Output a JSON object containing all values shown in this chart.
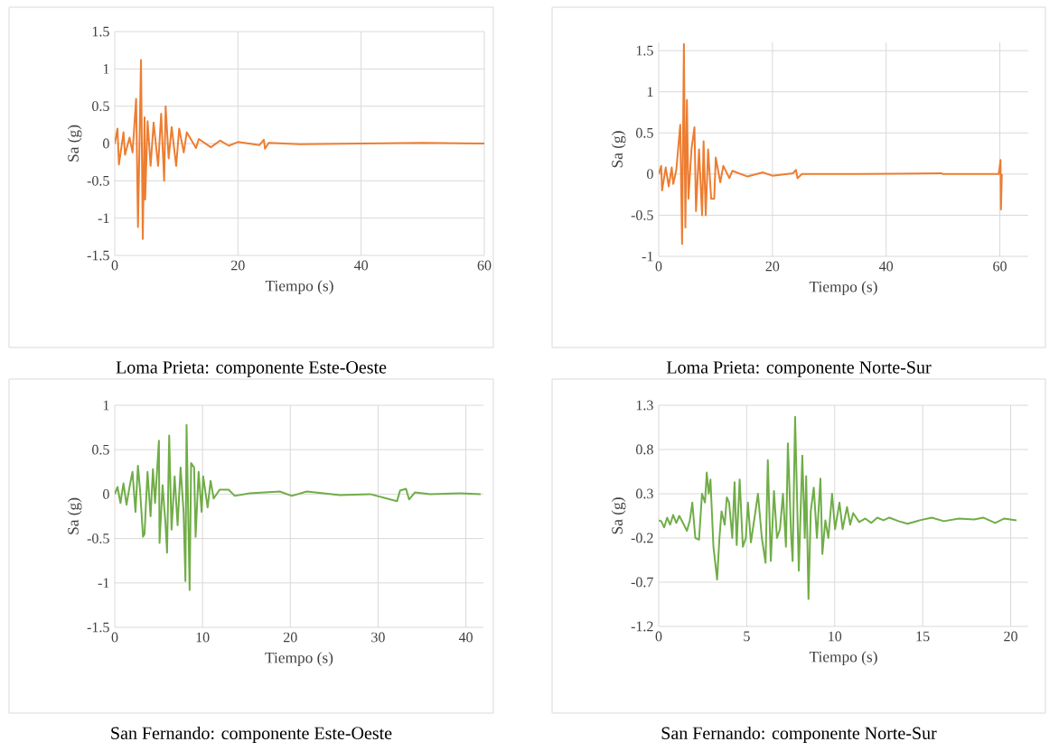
{
  "chart_data": [
    {
      "type": "line",
      "title": "Loma Prieta: componente Este-Oeste",
      "xlabel": "Tiempo (s)",
      "ylabel": "Sa (g)",
      "grid": true,
      "xlim": [
        0,
        60
      ],
      "ylim": [
        -1.5,
        1.5
      ],
      "xticks": [
        0,
        20,
        40,
        60
      ],
      "yticks": [
        -1.5,
        -1,
        -0.5,
        0,
        0.5,
        1,
        1.5
      ],
      "series": [
        {
          "color": "#ed7d31",
          "x": [
            0,
            0.44,
            0.68,
            1.42,
            1.66,
            2.4,
            2.89,
            3.47,
            3.77,
            4.26,
            4.55,
            4.84,
            4.94,
            5.33,
            5.82,
            6.31,
            7.04,
            7.53,
            8.02,
            8.26,
            8.75,
            9.24,
            9.97,
            10.46,
            11.2,
            11.69,
            13.2,
            13.64,
            15.6,
            17.1,
            18.5,
            20,
            23.5,
            24.2,
            24.4,
            25,
            30,
            40,
            50,
            60
          ],
          "values": [
            0,
            0.2,
            -0.28,
            0.15,
            -0.15,
            0.08,
            -0.12,
            0.6,
            -1.12,
            1.12,
            -1.28,
            0.35,
            -0.75,
            0.3,
            -0.3,
            0.28,
            -0.3,
            0.4,
            -0.5,
            0.5,
            -0.2,
            0.22,
            -0.3,
            0.2,
            -0.12,
            0.15,
            -0.06,
            0.06,
            -0.05,
            0.04,
            -0.03,
            0.02,
            -0.02,
            0.05,
            -0.07,
            0.01,
            -0.01,
            0,
            0.01,
            0
          ]
        }
      ]
    },
    {
      "type": "line",
      "title": "Loma Prieta: componente Norte-Sur",
      "xlabel": "Tiempo (s)",
      "ylabel": "Sa (g)",
      "grid": true,
      "xlim": [
        0,
        65
      ],
      "ylim": [
        -1,
        1.6
      ],
      "xticks": [
        0,
        20,
        40,
        60
      ],
      "yticks": [
        -1,
        -0.5,
        0,
        0.5,
        1,
        1.5
      ],
      "series": [
        {
          "color": "#ed7d31",
          "x": [
            0,
            0.43,
            0.59,
            1.23,
            1.76,
            2.29,
            2.56,
            3.09,
            3.79,
            4.11,
            4.43,
            4.69,
            4.96,
            5.23,
            5.76,
            6.29,
            6.56,
            7.09,
            7.63,
            7.89,
            8.27,
            8.69,
            9.23,
            9.76,
            10.03,
            10.83,
            11.36,
            12.43,
            12.96,
            15.63,
            18.29,
            20,
            23.6,
            24.15,
            24.41,
            25.2,
            35,
            49.7,
            50,
            59.8,
            60.12,
            60.2,
            60.35
          ],
          "values": [
            0,
            0.1,
            -0.2,
            0.08,
            -0.15,
            0.08,
            -0.12,
            0.05,
            0.6,
            -0.85,
            1.58,
            -0.65,
            0.9,
            -0.3,
            0.3,
            0.57,
            -0.45,
            0.3,
            -0.5,
            0.4,
            -0.5,
            0.3,
            -0.3,
            -0.3,
            0.2,
            -0.1,
            0.1,
            -0.05,
            0.04,
            -0.03,
            0.02,
            -0.02,
            0.01,
            0.05,
            -0.05,
            0,
            0,
            0.01,
            0,
            0,
            0.17,
            -0.43,
            0
          ]
        }
      ]
    },
    {
      "type": "line",
      "title": "San Fernando: componente Este-Oeste",
      "xlabel": "Tiempo (s)",
      "ylabel": "Sa (g)",
      "grid": true,
      "xlim": [
        0,
        42
      ],
      "ylim": [
        -1.5,
        1
      ],
      "xticks": [
        0,
        10,
        20,
        30,
        40
      ],
      "yticks": [
        -1.5,
        -1,
        -0.5,
        0,
        0.5,
        1
      ],
      "series": [
        {
          "color": "#70ad47",
          "x": [
            0,
            0.31,
            0.65,
            0.99,
            1.34,
            1.68,
            2.02,
            2.36,
            2.64,
            2.88,
            3.22,
            3.39,
            3.73,
            4.08,
            4.35,
            4.59,
            5.03,
            5.1,
            5.45,
            5.79,
            5.96,
            6.2,
            6.47,
            6.82,
            7.16,
            7.5,
            7.84,
            8.05,
            8.18,
            8.53,
            8.7,
            9.04,
            9.21,
            9.55,
            9.9,
            10.07,
            10.58,
            10.92,
            11.27,
            11.95,
            12.98,
            13.66,
            15.38,
            18.8,
            20.17,
            21.88,
            25.65,
            29.08,
            32.16,
            32.5,
            33.18,
            33.53,
            34.21,
            35.92,
            39.35,
            41.68
          ],
          "values": [
            0,
            0.08,
            -0.1,
            0.12,
            -0.12,
            0.08,
            0.25,
            -0.2,
            0.32,
            0.05,
            -0.48,
            -0.45,
            0.25,
            -0.25,
            0.28,
            -0.1,
            0.6,
            -0.55,
            0.1,
            -0.35,
            -0.66,
            0.66,
            -0.4,
            0.2,
            -0.35,
            0.3,
            -0.2,
            -0.98,
            0.78,
            -1.08,
            0.35,
            0.3,
            -0.48,
            0.25,
            -0.2,
            0.2,
            -0.15,
            0.15,
            -0.05,
            0.05,
            0.05,
            -0.02,
            0.01,
            0.03,
            -0.02,
            0.03,
            -0.01,
            0,
            -0.08,
            0.04,
            0.06,
            -0.06,
            0.02,
            0,
            0.01,
            0
          ]
        }
      ]
    },
    {
      "type": "line",
      "title": "San Fernando: componente Norte-Sur",
      "xlabel": "Tiempo (s)",
      "ylabel": "Sa (g)",
      "grid": true,
      "xlim": [
        0,
        21
      ],
      "ylim": [
        -1.2,
        1.3
      ],
      "xticks": [
        0,
        5,
        10,
        15,
        20
      ],
      "yticks": [
        -1.2,
        -0.7,
        -0.2,
        0.3,
        0.8,
        1.3
      ],
      "series": [
        {
          "color": "#70ad47",
          "x": [
            0,
            0.14,
            0.31,
            0.48,
            0.65,
            0.82,
            1.0,
            1.17,
            1.43,
            1.6,
            1.77,
            1.91,
            2.08,
            2.29,
            2.46,
            2.63,
            2.73,
            2.84,
            2.94,
            3.11,
            3.32,
            3.45,
            3.57,
            3.75,
            3.87,
            4.0,
            4.18,
            4.31,
            4.43,
            4.6,
            4.78,
            4.95,
            5.07,
            5.24,
            5.46,
            5.64,
            5.86,
            6.07,
            6.2,
            6.37,
            6.55,
            6.72,
            6.89,
            7.06,
            7.23,
            7.34,
            7.53,
            7.61,
            7.75,
            7.96,
            8.16,
            8.3,
            8.38,
            8.51,
            8.64,
            8.81,
            8.99,
            9.19,
            9.3,
            9.47,
            9.64,
            9.85,
            10.02,
            10.27,
            10.45,
            10.7,
            10.88,
            11.05,
            11.39,
            11.74,
            12.08,
            12.42,
            12.77,
            13.11,
            13.63,
            14.14,
            14.83,
            15.52,
            16.2,
            17.06,
            17.92,
            18.44,
            19.12,
            19.64,
            20.33
          ],
          "values": [
            0,
            -0.01,
            -0.08,
            0.03,
            -0.05,
            0.06,
            -0.03,
            0.05,
            -0.05,
            -0.12,
            0,
            0.2,
            -0.2,
            -0.22,
            0.3,
            0.2,
            0.54,
            0.3,
            0.46,
            -0.3,
            -0.67,
            -0.2,
            0.1,
            -0.05,
            0.26,
            0.2,
            -0.2,
            0.43,
            -0.28,
            0.46,
            -0.3,
            -0.2,
            0.2,
            -0.25,
            0.05,
            0.3,
            -0.2,
            -0.48,
            0.68,
            -0.46,
            0.33,
            -0.2,
            -0.1,
            0.3,
            -0.3,
            0.87,
            -0.2,
            -0.46,
            1.17,
            -0.57,
            0.73,
            -0.2,
            0.5,
            -0.89,
            0.1,
            0.37,
            -0.2,
            0.47,
            -0.38,
            0,
            -0.2,
            0.3,
            -0.1,
            0.2,
            -0.1,
            0.15,
            -0.05,
            0.08,
            -0.02,
            0.02,
            -0.03,
            0.03,
            0,
            0.03,
            -0.01,
            -0.04,
            0,
            0.03,
            -0.01,
            0.02,
            0.01,
            0.03,
            -0.03,
            0.02,
            0
          ]
        }
      ]
    }
  ]
}
